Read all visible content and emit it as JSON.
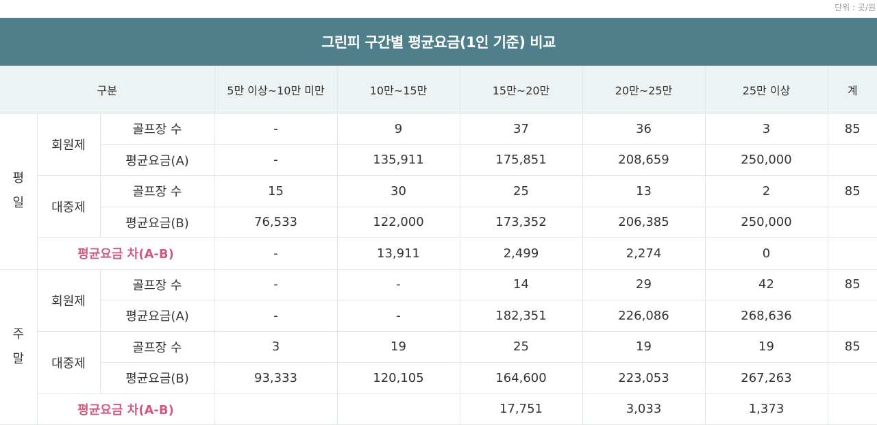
{
  "unit_note": "단위 : 곳/원",
  "title": "그린피 구간별 평균요금(1인 기준) 비교",
  "header": {
    "group": "구분",
    "cols": [
      "5만 이상~10만 미만",
      "10만~15만",
      "15만~20만",
      "20만~25만",
      "25만 이상",
      "계"
    ]
  },
  "periods": [
    {
      "label_top": "평",
      "label_bottom": "일",
      "types": [
        {
          "name": "회원제",
          "rows": [
            {
              "label": "골프장 수",
              "cells": [
                "-",
                "9",
                "37",
                "36",
                "3",
                "85"
              ]
            },
            {
              "label": "평균요금(A)",
              "cells": [
                "-",
                "135,911",
                "175,851",
                "208,659",
                "250,000",
                ""
              ]
            }
          ]
        },
        {
          "name": "대중제",
          "rows": [
            {
              "label": "골프장 수",
              "cells": [
                "15",
                "30",
                "25",
                "13",
                "2",
                "85"
              ]
            },
            {
              "label": "평균요금(B)",
              "cells": [
                "76,533",
                "122,000",
                "173,352",
                "206,385",
                "250,000",
                ""
              ]
            }
          ]
        }
      ],
      "diff": {
        "label": "평균요금 차(A-B)",
        "cells": [
          "-",
          "13,911",
          "2,499",
          "2,274",
          "0",
          ""
        ]
      }
    },
    {
      "label_top": "주",
      "label_bottom": "말",
      "types": [
        {
          "name": "회원제",
          "rows": [
            {
              "label": "골프장 수",
              "cells": [
                "-",
                "-",
                "14",
                "29",
                "42",
                "85"
              ]
            },
            {
              "label": "평균요금(A)",
              "cells": [
                "-",
                "-",
                "182,351",
                "226,086",
                "268,636",
                ""
              ]
            }
          ]
        },
        {
          "name": "대중제",
          "rows": [
            {
              "label": "골프장 수",
              "cells": [
                "3",
                "19",
                "25",
                "19",
                "19",
                "85"
              ]
            },
            {
              "label": "평균요금(B)",
              "cells": [
                "93,333",
                "120,105",
                "164,600",
                "223,053",
                "267,263",
                ""
              ]
            }
          ]
        }
      ],
      "diff": {
        "label": "평균요금 차(A-B)",
        "cells": [
          "",
          "",
          "17,751",
          "3,033",
          "1,373",
          ""
        ]
      }
    }
  ],
  "colors": {
    "title_bg": "#4f7f8b",
    "header_bg": "#edf2f2",
    "diff_text": "#cf5b7e"
  }
}
